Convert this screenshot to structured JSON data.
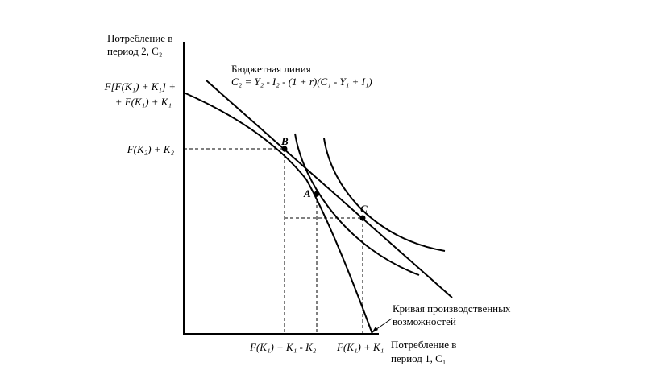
{
  "y_axis_label": [
    "Потребление в",
    "период 2, C₂"
  ],
  "x_axis_label": [
    "Потребление в",
    "период 1, C₁"
  ],
  "budget_line": {
    "title": "Бюджетная линия",
    "equation": "C₂ = Y₂ - I₂ - (1 + r)(C₁ - Y₁ + I₁)"
  },
  "ppf_label": [
    "Кривая производственных",
    "возможностей"
  ],
  "y_ticks": {
    "top": [
      "F[F(K₁) + K₁] +",
      "+ F(K₁) + K₁"
    ],
    "mid": "F(K₂) + K₂"
  },
  "x_ticks": {
    "left": "F(K₁) + K₁ - K₂",
    "right": "F(K₁) + K₁"
  },
  "points": {
    "A": "A",
    "B": "B",
    "C": "C"
  }
}
